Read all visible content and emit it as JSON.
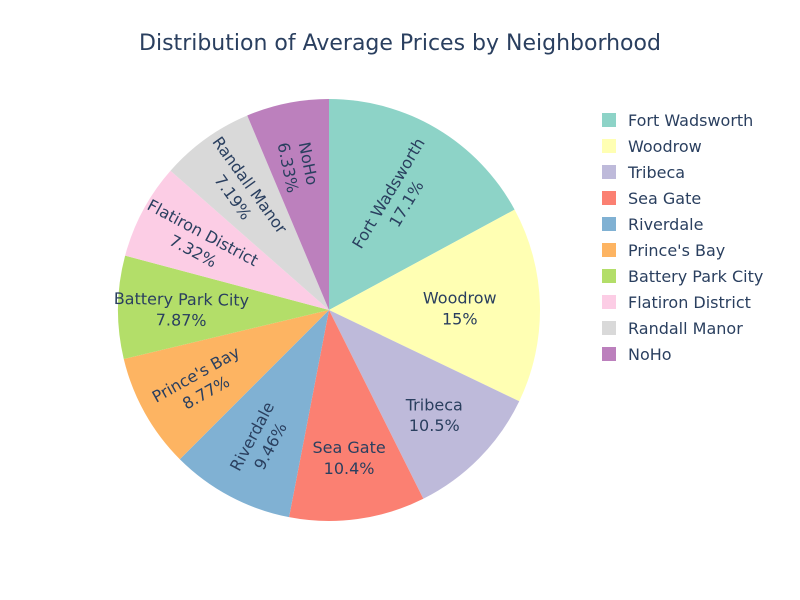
{
  "chart_data": {
    "type": "pie",
    "title": "Distribution of Average Prices by Neighborhood",
    "slices": [
      {
        "label": "Fort Wadsworth",
        "value": 17.1,
        "percent_label": "17.1%",
        "color": "#8dd3c7"
      },
      {
        "label": "Woodrow",
        "value": 15.0,
        "percent_label": "15%",
        "color": "#ffffb3"
      },
      {
        "label": "Tribeca",
        "value": 10.5,
        "percent_label": "10.5%",
        "color": "#bebada"
      },
      {
        "label": "Sea Gate",
        "value": 10.4,
        "percent_label": "10.4%",
        "color": "#fb8072"
      },
      {
        "label": "Riverdale",
        "value": 9.46,
        "percent_label": "9.46%",
        "color": "#80b1d3"
      },
      {
        "label": "Prince's Bay",
        "value": 8.77,
        "percent_label": "8.77%",
        "color": "#fdb462"
      },
      {
        "label": "Battery Park City",
        "value": 7.87,
        "percent_label": "7.87%",
        "color": "#b3de69"
      },
      {
        "label": "Flatiron District",
        "value": 7.32,
        "percent_label": "7.32%",
        "color": "#fccde5"
      },
      {
        "label": "Randall Manor",
        "value": 7.19,
        "percent_label": "7.19%",
        "color": "#d9d9d9"
      },
      {
        "label": "NoHo",
        "value": 6.33,
        "percent_label": "6.33%",
        "color": "#bc80bd"
      }
    ],
    "direction": "clockwise",
    "start": "top",
    "legend_position": "right",
    "text_color": "#2a3f5f"
  }
}
